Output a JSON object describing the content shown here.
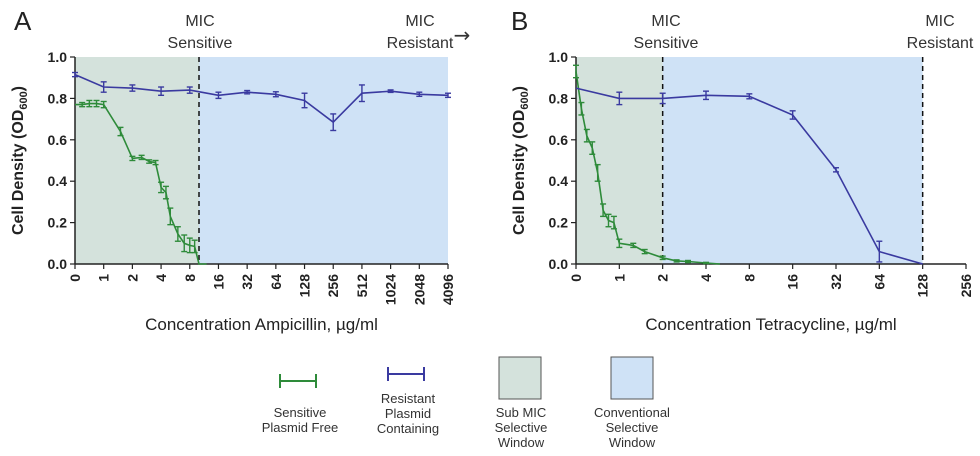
{
  "legend": [
    {
      "label_lines": [
        "Sensitive",
        "Plasmid Free"
      ],
      "color": "#2e8b3a",
      "kind": "errorbar-line"
    },
    {
      "label_lines": [
        "Resistant",
        "Plasmid",
        "Containing"
      ],
      "color": "#3a3aa0",
      "kind": "errorbar-line"
    },
    {
      "label_lines": [
        "Sub MIC",
        "Selective",
        "Window"
      ],
      "color": "#d4e2dc",
      "kind": "swatch"
    },
    {
      "label_lines": [
        "Conventional",
        "Selective",
        "Window"
      ],
      "color": "#cfe2f6",
      "kind": "swatch"
    }
  ],
  "chart_data": [
    {
      "panel_label": "A",
      "type": "line",
      "xlabel": "Concentration Ampicillin, µg/ml",
      "ylabel": "Cell Density (OD600)",
      "ylabel_main": "Cell Density (OD",
      "ylabel_sub": "600",
      "ylabel_end": ")",
      "ylim": [
        0,
        1.0
      ],
      "y_ticks": [
        "0.0",
        "0.2",
        "0.4",
        "0.6",
        "0.8",
        "1.0"
      ],
      "x_ticks": [
        "0",
        "1",
        "2",
        "4",
        "8",
        "16",
        "32",
        "64",
        "128",
        "256",
        "512",
        "1024",
        "2048",
        "4096"
      ],
      "mic_line_at": 10,
      "annotations": {
        "sensitive_mic": [
          "MIC",
          "Sensitive"
        ],
        "resistant_mic": [
          "MIC",
          "Resistant"
        ],
        "resistant_arrow": "→"
      },
      "windows": {
        "sub_mic": [
          0,
          10
        ],
        "conventional": [
          10,
          4096
        ]
      },
      "series": [
        {
          "name": "Sensitive Plasmid Free",
          "color": "#2e8b3a",
          "points": [
            {
              "x": 0,
              "y": 0.77,
              "err": 0.0
            },
            {
              "x": 0.25,
              "y": 0.77,
              "err": 0.01
            },
            {
              "x": 0.5,
              "y": 0.775,
              "err": 0.015
            },
            {
              "x": 0.75,
              "y": 0.775,
              "err": 0.015
            },
            {
              "x": 1,
              "y": 0.77,
              "err": 0.015
            },
            {
              "x": 1.5,
              "y": 0.64,
              "err": 0.02
            },
            {
              "x": 2,
              "y": 0.51,
              "err": 0.01
            },
            {
              "x": 2.5,
              "y": 0.515,
              "err": 0.01
            },
            {
              "x": 3,
              "y": 0.495,
              "err": 0.008
            },
            {
              "x": 3.5,
              "y": 0.49,
              "err": 0.01
            },
            {
              "x": 4,
              "y": 0.37,
              "err": 0.025
            },
            {
              "x": 4.5,
              "y": 0.345,
              "err": 0.03
            },
            {
              "x": 5,
              "y": 0.23,
              "err": 0.04
            },
            {
              "x": 6,
              "y": 0.145,
              "err": 0.035
            },
            {
              "x": 7,
              "y": 0.1,
              "err": 0.04
            },
            {
              "x": 8,
              "y": 0.09,
              "err": 0.035
            },
            {
              "x": 9,
              "y": 0.085,
              "err": 0.03
            },
            {
              "x": 10,
              "y": 0.0,
              "err": 0.0
            },
            {
              "x": 12,
              "y": 0.0,
              "err": 0.0
            }
          ]
        },
        {
          "name": "Resistant Plasmid Containing",
          "color": "#3a3aa0",
          "points": [
            {
              "x": 0,
              "y": 0.915,
              "err": 0.01
            },
            {
              "x": 1,
              "y": 0.855,
              "err": 0.025
            },
            {
              "x": 2,
              "y": 0.85,
              "err": 0.015
            },
            {
              "x": 4,
              "y": 0.835,
              "err": 0.02
            },
            {
              "x": 8,
              "y": 0.84,
              "err": 0.015
            },
            {
              "x": 16,
              "y": 0.815,
              "err": 0.015
            },
            {
              "x": 32,
              "y": 0.83,
              "err": 0.008
            },
            {
              "x": 64,
              "y": 0.82,
              "err": 0.012
            },
            {
              "x": 128,
              "y": 0.79,
              "err": 0.035
            },
            {
              "x": 256,
              "y": 0.685,
              "err": 0.04
            },
            {
              "x": 512,
              "y": 0.825,
              "err": 0.04
            },
            {
              "x": 1024,
              "y": 0.835,
              "err": 0.006
            },
            {
              "x": 2048,
              "y": 0.82,
              "err": 0.01
            },
            {
              "x": 4096,
              "y": 0.815,
              "err": 0.01
            }
          ]
        }
      ]
    },
    {
      "panel_label": "B",
      "type": "line",
      "xlabel": "Concentration Tetracycline, µg/ml",
      "ylabel": "Cell Density (OD600)",
      "ylabel_main": "Cell Density (OD",
      "ylabel_sub": "600",
      "ylabel_end": ")",
      "ylim": [
        0,
        1.0
      ],
      "y_ticks": [
        "0.0",
        "0.2",
        "0.4",
        "0.6",
        "0.8",
        "1.0"
      ],
      "x_ticks": [
        "0",
        "1",
        "2",
        "4",
        "8",
        "16",
        "32",
        "64",
        "128",
        "256"
      ],
      "mic_line_at": [
        2,
        128
      ],
      "annotations": {
        "sensitive_mic": [
          "MIC",
          "Sensitive"
        ],
        "resistant_mic": [
          "MIC",
          "Resistant"
        ]
      },
      "windows": {
        "sub_mic": [
          0,
          2
        ],
        "conventional": [
          2,
          128
        ]
      },
      "series": [
        {
          "name": "Sensitive Plasmid Free",
          "color": "#2e8b3a",
          "points": [
            {
              "x": 0,
              "y": 0.93,
              "err": 0.03
            },
            {
              "x": 0.125,
              "y": 0.75,
              "err": 0.03
            },
            {
              "x": 0.25,
              "y": 0.62,
              "err": 0.03
            },
            {
              "x": 0.375,
              "y": 0.56,
              "err": 0.03
            },
            {
              "x": 0.5,
              "y": 0.44,
              "err": 0.04
            },
            {
              "x": 0.625,
              "y": 0.26,
              "err": 0.03
            },
            {
              "x": 0.75,
              "y": 0.21,
              "err": 0.03
            },
            {
              "x": 0.875,
              "y": 0.2,
              "err": 0.03
            },
            {
              "x": 1,
              "y": 0.1,
              "err": 0.02
            },
            {
              "x": 1.25,
              "y": 0.09,
              "err": 0.01
            },
            {
              "x": 1.5,
              "y": 0.06,
              "err": 0.01
            },
            {
              "x": 2,
              "y": 0.03,
              "err": 0.008
            },
            {
              "x": 2.5,
              "y": 0.015,
              "err": 0.005
            },
            {
              "x": 3,
              "y": 0.012,
              "err": 0.005
            },
            {
              "x": 4,
              "y": 0.005,
              "err": 0.003
            },
            {
              "x": 5,
              "y": 0.0,
              "err": 0.0
            }
          ]
        },
        {
          "name": "Resistant Plasmid Containing",
          "color": "#3a3aa0",
          "points": [
            {
              "x": 0,
              "y": 0.85,
              "err": 0.0
            },
            {
              "x": 1,
              "y": 0.8,
              "err": 0.03
            },
            {
              "x": 2,
              "y": 0.8,
              "err": 0.025
            },
            {
              "x": 4,
              "y": 0.815,
              "err": 0.02
            },
            {
              "x": 8,
              "y": 0.81,
              "err": 0.012
            },
            {
              "x": 16,
              "y": 0.72,
              "err": 0.02
            },
            {
              "x": 32,
              "y": 0.455,
              "err": 0.01
            },
            {
              "x": 64,
              "y": 0.06,
              "err": 0.05
            },
            {
              "x": 128,
              "y": 0.0,
              "err": 0.0
            }
          ]
        }
      ]
    }
  ]
}
